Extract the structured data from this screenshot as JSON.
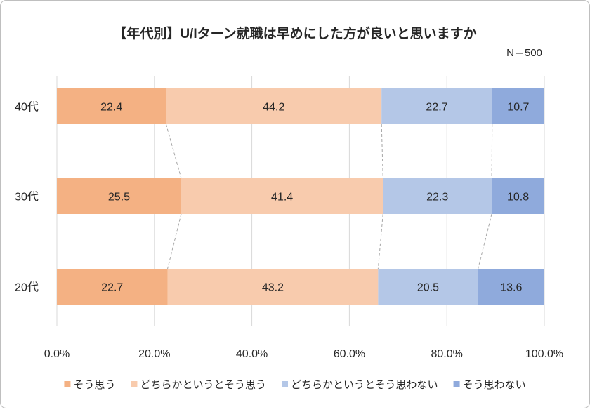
{
  "chart_data": {
    "type": "bar",
    "orientation": "horizontal",
    "stacked": "percent",
    "title": "【年代別】U/Iターン就職は早めにした方が良いと思いますか",
    "note": "N＝500",
    "categories": [
      "40代",
      "30代",
      "20代"
    ],
    "series": [
      {
        "name": "そう思う",
        "color": "#F4B183",
        "values": [
          22.4,
          25.5,
          22.7
        ]
      },
      {
        "name": "どちらかというとそう思う",
        "color": "#F8CBAD",
        "values": [
          44.2,
          41.4,
          43.2
        ]
      },
      {
        "name": "どちらかというとそう思わない",
        "color": "#B4C7E7",
        "values": [
          22.7,
          22.3,
          20.5
        ]
      },
      {
        "name": "そう思わない",
        "color": "#8FAADC",
        "values": [
          10.7,
          10.8,
          13.6
        ]
      }
    ],
    "xlim": [
      0,
      100
    ],
    "xticks": [
      "0.0%",
      "20.0%",
      "40.0%",
      "60.0%",
      "80.0%",
      "100.0%"
    ],
    "grid": true,
    "series_lines": true,
    "legend": "bottom"
  }
}
